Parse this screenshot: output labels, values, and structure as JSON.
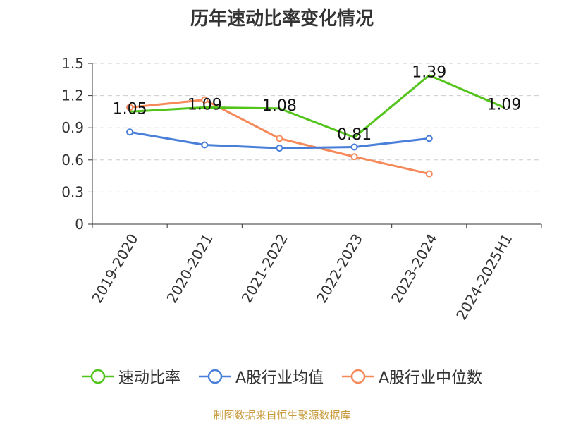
{
  "chart_data": {
    "type": "line",
    "title": "历年速动比率变化情况",
    "categories": [
      "2019-2020",
      "2020-2021",
      "2021-2022",
      "2022-2023",
      "2023-2024",
      "2024-2025H1"
    ],
    "ylim": [
      0,
      1.5
    ],
    "yticks": [
      "0",
      "0.3",
      "0.6",
      "0.9",
      "1.2",
      "1.5"
    ],
    "grid": true,
    "legend_position": "bottom",
    "series": [
      {
        "name": "速动比率",
        "color": "#52c41a",
        "values": [
          1.05,
          1.09,
          1.08,
          0.81,
          1.39,
          1.09
        ],
        "labels": [
          "1.05",
          "1.09",
          "1.08",
          "0.81",
          "1.39",
          "1.09"
        ]
      },
      {
        "name": "A股行业均值",
        "color": "#4a7fd9",
        "values": [
          0.86,
          0.74,
          0.71,
          0.72,
          0.8,
          null
        ]
      },
      {
        "name": "A股行业中位数",
        "color": "#f5895a",
        "values": [
          1.09,
          1.16,
          0.8,
          0.63,
          0.47,
          null
        ]
      }
    ]
  },
  "source": "制图数据来自恒生聚源数据库"
}
